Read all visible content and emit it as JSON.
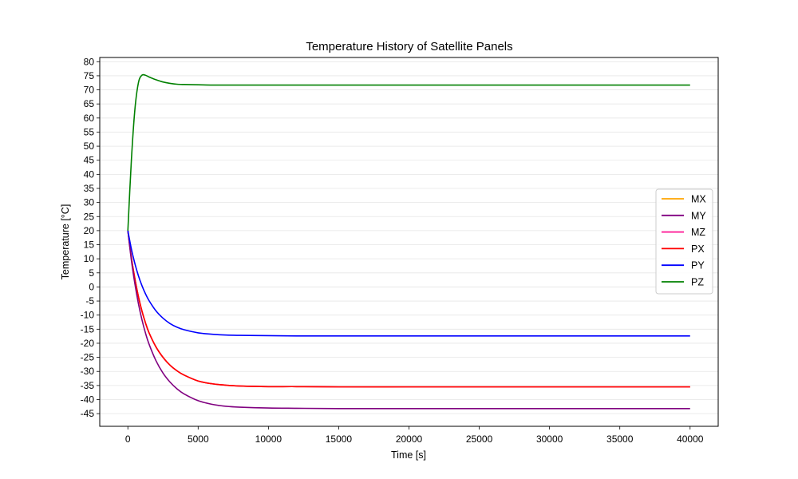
{
  "chart_data": {
    "type": "line",
    "title": "Temperature History of Satellite Panels",
    "xlabel": "Time [s]",
    "ylabel": "Temperature [°C]",
    "xlim": [
      -2000,
      42000
    ],
    "ylim": [
      -49.5,
      81.5
    ],
    "x_ticks": [
      0,
      5000,
      10000,
      15000,
      20000,
      25000,
      30000,
      35000,
      40000
    ],
    "y_ticks": [
      -45,
      -40,
      -35,
      -30,
      -25,
      -20,
      -15,
      -10,
      -5,
      0,
      5,
      10,
      15,
      20,
      25,
      30,
      35,
      40,
      45,
      50,
      55,
      60,
      65,
      70,
      75,
      80
    ],
    "grid": "horizontal",
    "legend_position": "center-right",
    "x": [
      0,
      250,
      500,
      750,
      1000,
      1250,
      1500,
      2000,
      2500,
      3000,
      3500,
      4000,
      5000,
      6000,
      7000,
      8000,
      10000,
      12000,
      15000,
      20000,
      25000,
      30000,
      35000,
      40000
    ],
    "series": [
      {
        "name": "MX",
        "color": "#FFA500",
        "values": [
          20,
          10.4,
          2.9,
          -3.4,
          -8.5,
          -12.7,
          -16.2,
          -21.3,
          -25.0,
          -27.8,
          -29.8,
          -31.3,
          -33.4,
          -34.4,
          -34.9,
          -35.2,
          -35.4,
          -35.4,
          -35.5,
          -35.5,
          -35.5,
          -35.5,
          -35.5,
          -35.5
        ]
      },
      {
        "name": "MY",
        "color": "#800080",
        "values": [
          20,
          9.5,
          1.1,
          -5.9,
          -11.6,
          -16.3,
          -20.2,
          -26.2,
          -30.6,
          -33.8,
          -36.2,
          -38.0,
          -40.4,
          -41.7,
          -42.4,
          -42.7,
          -43.0,
          -43.1,
          -43.2,
          -43.2,
          -43.2,
          -43.2,
          -43.2,
          -43.2
        ]
      },
      {
        "name": "MZ",
        "color": "#FF1493",
        "values": [
          20,
          10.4,
          2.9,
          -3.4,
          -8.5,
          -12.7,
          -16.2,
          -21.3,
          -25.0,
          -27.8,
          -29.8,
          -31.3,
          -33.4,
          -34.4,
          -34.9,
          -35.2,
          -35.4,
          -35.4,
          -35.5,
          -35.5,
          -35.5,
          -35.5,
          -35.5,
          -35.5
        ]
      },
      {
        "name": "PX",
        "color": "#FF0000",
        "values": [
          20,
          10.4,
          2.9,
          -3.4,
          -8.5,
          -12.7,
          -16.2,
          -21.3,
          -25.0,
          -27.8,
          -29.8,
          -31.3,
          -33.4,
          -34.4,
          -34.9,
          -35.2,
          -35.4,
          -35.4,
          -35.5,
          -35.5,
          -35.5,
          -35.5,
          -35.5,
          -35.5
        ]
      },
      {
        "name": "PY",
        "color": "#0000FF",
        "values": [
          20,
          13.5,
          8.3,
          4.0,
          0.5,
          -2.4,
          -4.8,
          -8.5,
          -11.1,
          -13.0,
          -14.3,
          -15.2,
          -16.3,
          -16.8,
          -17.1,
          -17.2,
          -17.3,
          -17.4,
          -17.4,
          -17.4,
          -17.4,
          -17.4,
          -17.4,
          -17.4
        ]
      },
      {
        "name": "PZ",
        "color": "#008000",
        "values": [
          20,
          45.0,
          63.0,
          72.5,
          75.2,
          75.2,
          74.6,
          73.6,
          72.8,
          72.3,
          72.0,
          71.9,
          71.8,
          71.7,
          71.7,
          71.7,
          71.7,
          71.7,
          71.7,
          71.7,
          71.7,
          71.7,
          71.7,
          71.7
        ]
      }
    ]
  }
}
